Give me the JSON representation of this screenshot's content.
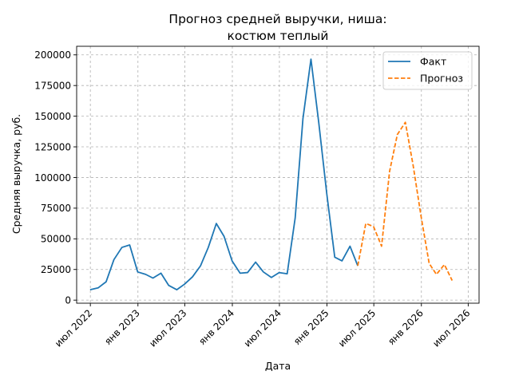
{
  "chart_data": {
    "type": "line",
    "title_lines": [
      "Прогноз средней выручки, ниша:",
      "костюм теплый"
    ],
    "xlabel": "Дата",
    "ylabel": "Средняя выручка, руб.",
    "xlim": [
      "2022-05-09",
      "2026-08-12"
    ],
    "ylim": [
      -2500,
      207000
    ],
    "grid": true,
    "legend_position": "top-right",
    "x_ticks": [
      {
        "date": "2022-07-01",
        "label": "июл 2022"
      },
      {
        "date": "2023-01-01",
        "label": "янв 2023"
      },
      {
        "date": "2023-07-01",
        "label": "июл 2023"
      },
      {
        "date": "2024-01-01",
        "label": "янв 2024"
      },
      {
        "date": "2024-07-01",
        "label": "июл 2024"
      },
      {
        "date": "2025-01-01",
        "label": "янв 2025"
      },
      {
        "date": "2025-07-01",
        "label": "июл 2025"
      },
      {
        "date": "2026-01-01",
        "label": "янв 2026"
      },
      {
        "date": "2026-07-01",
        "label": "июл 2026"
      }
    ],
    "y_ticks": [
      {
        "value": 0,
        "label": "0"
      },
      {
        "value": 25000,
        "label": "25000"
      },
      {
        "value": 50000,
        "label": "50000"
      },
      {
        "value": 75000,
        "label": "75000"
      },
      {
        "value": 100000,
        "label": "100000"
      },
      {
        "value": 125000,
        "label": "125000"
      },
      {
        "value": 150000,
        "label": "150000"
      },
      {
        "value": 175000,
        "label": "175000"
      },
      {
        "value": 200000,
        "label": "200000"
      }
    ],
    "series": [
      {
        "name": "Факт",
        "color": "#1f77b4",
        "dash": "solid",
        "points": [
          [
            "2022-06-30",
            8500
          ],
          [
            "2022-07-31",
            10000
          ],
          [
            "2022-08-31",
            15000
          ],
          [
            "2022-09-30",
            33000
          ],
          [
            "2022-10-31",
            43000
          ],
          [
            "2022-11-30",
            45000
          ],
          [
            "2022-12-31",
            23000
          ],
          [
            "2023-01-31",
            21000
          ],
          [
            "2023-02-28",
            18000
          ],
          [
            "2023-03-31",
            22000
          ],
          [
            "2023-04-30",
            12000
          ],
          [
            "2023-05-31",
            8500
          ],
          [
            "2023-06-30",
            13000
          ],
          [
            "2023-07-31",
            19000
          ],
          [
            "2023-08-31",
            28000
          ],
          [
            "2023-09-30",
            43000
          ],
          [
            "2023-10-31",
            62500
          ],
          [
            "2023-11-30",
            52000
          ],
          [
            "2023-12-31",
            32000
          ],
          [
            "2024-01-31",
            22000
          ],
          [
            "2024-02-29",
            22500
          ],
          [
            "2024-03-31",
            31000
          ],
          [
            "2024-04-30",
            23000
          ],
          [
            "2024-05-31",
            18500
          ],
          [
            "2024-06-30",
            22500
          ],
          [
            "2024-07-31",
            21500
          ],
          [
            "2024-08-31",
            67000
          ],
          [
            "2024-09-30",
            148000
          ],
          [
            "2024-10-31",
            196500
          ],
          [
            "2024-11-30",
            145000
          ],
          [
            "2024-12-31",
            87000
          ],
          [
            "2025-01-31",
            35000
          ],
          [
            "2025-02-28",
            32000
          ],
          [
            "2025-03-31",
            44000
          ],
          [
            "2025-04-30",
            28000
          ]
        ]
      },
      {
        "name": "Прогноз",
        "color": "#ff7f0e",
        "dash": "dashed",
        "points": [
          [
            "2025-04-30",
            28000
          ],
          [
            "2025-05-31",
            62500
          ],
          [
            "2025-06-30",
            60000
          ],
          [
            "2025-07-31",
            44000
          ],
          [
            "2025-08-31",
            105000
          ],
          [
            "2025-09-30",
            135000
          ],
          [
            "2025-10-31",
            145000
          ],
          [
            "2025-11-30",
            110000
          ],
          [
            "2025-12-31",
            68000
          ],
          [
            "2026-01-31",
            30000
          ],
          [
            "2026-02-28",
            21000
          ],
          [
            "2026-03-31",
            29000
          ],
          [
            "2026-04-30",
            16000
          ]
        ]
      }
    ]
  }
}
